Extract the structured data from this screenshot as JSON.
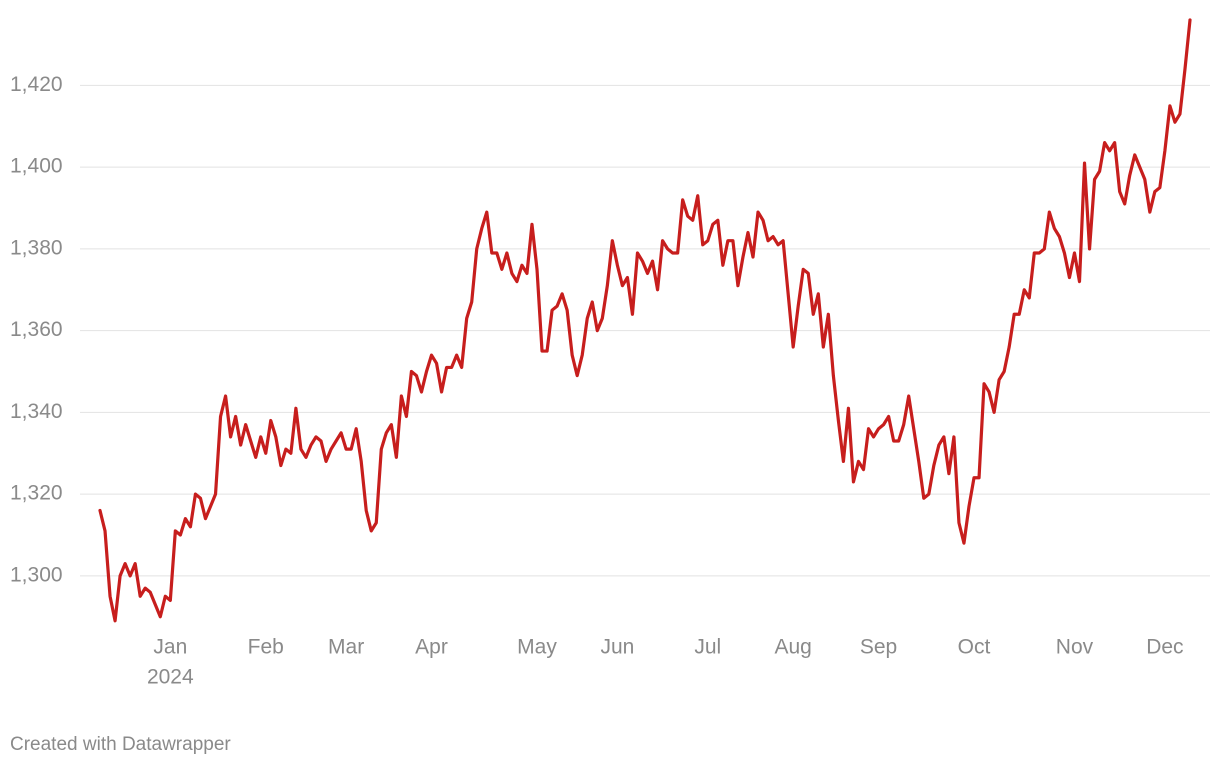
{
  "chart_data": {
    "type": "line",
    "categories": [
      null,
      null,
      null,
      null,
      null,
      null,
      null,
      null,
      null,
      null,
      null,
      null,
      null,
      null,
      "Jan",
      null,
      null,
      null,
      null,
      null,
      null,
      null,
      null,
      null,
      null,
      null,
      null,
      null,
      null,
      null,
      null,
      null,
      null,
      "Feb",
      null,
      null,
      null,
      null,
      null,
      null,
      null,
      null,
      null,
      null,
      null,
      null,
      null,
      null,
      null,
      "Mar",
      null,
      null,
      null,
      null,
      null,
      null,
      null,
      null,
      null,
      null,
      null,
      null,
      null,
      null,
      null,
      null,
      "Apr",
      null,
      null,
      null,
      null,
      null,
      null,
      null,
      null,
      null,
      null,
      null,
      null,
      null,
      null,
      null,
      null,
      null,
      null,
      null,
      null,
      "May",
      null,
      null,
      null,
      null,
      null,
      null,
      null,
      null,
      null,
      null,
      null,
      null,
      null,
      null,
      null,
      "Jun",
      null,
      null,
      null,
      null,
      null,
      null,
      null,
      null,
      null,
      null,
      null,
      null,
      null,
      null,
      null,
      null,
      null,
      "Jul",
      null,
      null,
      null,
      null,
      null,
      null,
      null,
      null,
      null,
      null,
      null,
      null,
      null,
      null,
      null,
      null,
      "Aug",
      null,
      null,
      null,
      null,
      null,
      null,
      null,
      null,
      null,
      null,
      null,
      null,
      null,
      null,
      null,
      null,
      "Sep",
      null,
      null,
      null,
      null,
      null,
      null,
      null,
      null,
      null,
      null,
      null,
      null,
      null,
      null,
      null,
      null,
      null,
      null,
      "Oct",
      null,
      null,
      null,
      null,
      null,
      null,
      null,
      null,
      null,
      null,
      null,
      null,
      null,
      null,
      null,
      null,
      null,
      null,
      null,
      "Nov",
      null,
      null,
      null,
      null,
      null,
      null,
      null,
      null,
      null,
      null,
      null,
      null,
      null,
      null,
      null,
      null,
      null,
      "Dec",
      null,
      null,
      null,
      null,
      null
    ],
    "year_label": "2024",
    "series": [
      {
        "color": "#c71e1d",
        "values": [
          1316,
          1311,
          1295,
          1289,
          1300,
          1303,
          1300,
          1303,
          1295,
          1297,
          1296,
          1293,
          1290,
          1295,
          1294,
          1311,
          1310,
          1314,
          1312,
          1320,
          1319,
          1314,
          1317,
          1320,
          1339,
          1344,
          1334,
          1339,
          1332,
          1337,
          1333,
          1329,
          1334,
          1330,
          1338,
          1334,
          1327,
          1331,
          1330,
          1341,
          1331,
          1329,
          1332,
          1334,
          1333,
          1328,
          1331,
          1333,
          1335,
          1331,
          1331,
          1336,
          1328,
          1316,
          1311,
          1313,
          1331,
          1335,
          1337,
          1329,
          1344,
          1339,
          1350,
          1349,
          1345,
          1350,
          1354,
          1352,
          1345,
          1351,
          1351,
          1354,
          1351,
          1363,
          1367,
          1380,
          1385,
          1389,
          1379,
          1379,
          1375,
          1379,
          1374,
          1372,
          1376,
          1374,
          1386,
          1375,
          1355,
          1355,
          1365,
          1366,
          1369,
          1365,
          1354,
          1349,
          1354,
          1363,
          1367,
          1360,
          1363,
          1371,
          1382,
          1376,
          1371,
          1373,
          1364,
          1379,
          1377,
          1374,
          1377,
          1370,
          1382,
          1380,
          1379,
          1379,
          1392,
          1388,
          1387,
          1393,
          1381,
          1382,
          1386,
          1387,
          1376,
          1382,
          1382,
          1371,
          1378,
          1384,
          1378,
          1389,
          1387,
          1382,
          1383,
          1381,
          1382,
          1369,
          1356,
          1366,
          1375,
          1374,
          1364,
          1369,
          1356,
          1364,
          1349,
          1338,
          1328,
          1341,
          1323,
          1328,
          1326,
          1336,
          1334,
          1336,
          1337,
          1339,
          1333,
          1333,
          1337,
          1344,
          1336,
          1328,
          1319,
          1320,
          1327,
          1332,
          1334,
          1325,
          1334,
          1313,
          1308,
          1317,
          1324,
          1324,
          1347,
          1345,
          1340,
          1348,
          1350,
          1356,
          1364,
          1364,
          1370,
          1368,
          1379,
          1379,
          1380,
          1389,
          1385,
          1383,
          1379,
          1373,
          1379,
          1372,
          1401,
          1380,
          1397,
          1399,
          1406,
          1404,
          1406,
          1394,
          1391,
          1398,
          1403,
          1400,
          1397,
          1389,
          1394,
          1395,
          1404,
          1415,
          1411,
          1413,
          1424,
          1436
        ]
      }
    ],
    "ylim": [
      1287,
      1436
    ],
    "yticks": [
      {
        "value": 1300,
        "label": "1,300"
      },
      {
        "value": 1320,
        "label": "1,320"
      },
      {
        "value": 1340,
        "label": "1,340"
      },
      {
        "value": 1360,
        "label": "1,360"
      },
      {
        "value": 1380,
        "label": "1,380"
      },
      {
        "value": 1400,
        "label": "1,400"
      },
      {
        "value": 1420,
        "label": "1,420"
      }
    ],
    "grid": true,
    "credit": "Created with Datawrapper"
  }
}
